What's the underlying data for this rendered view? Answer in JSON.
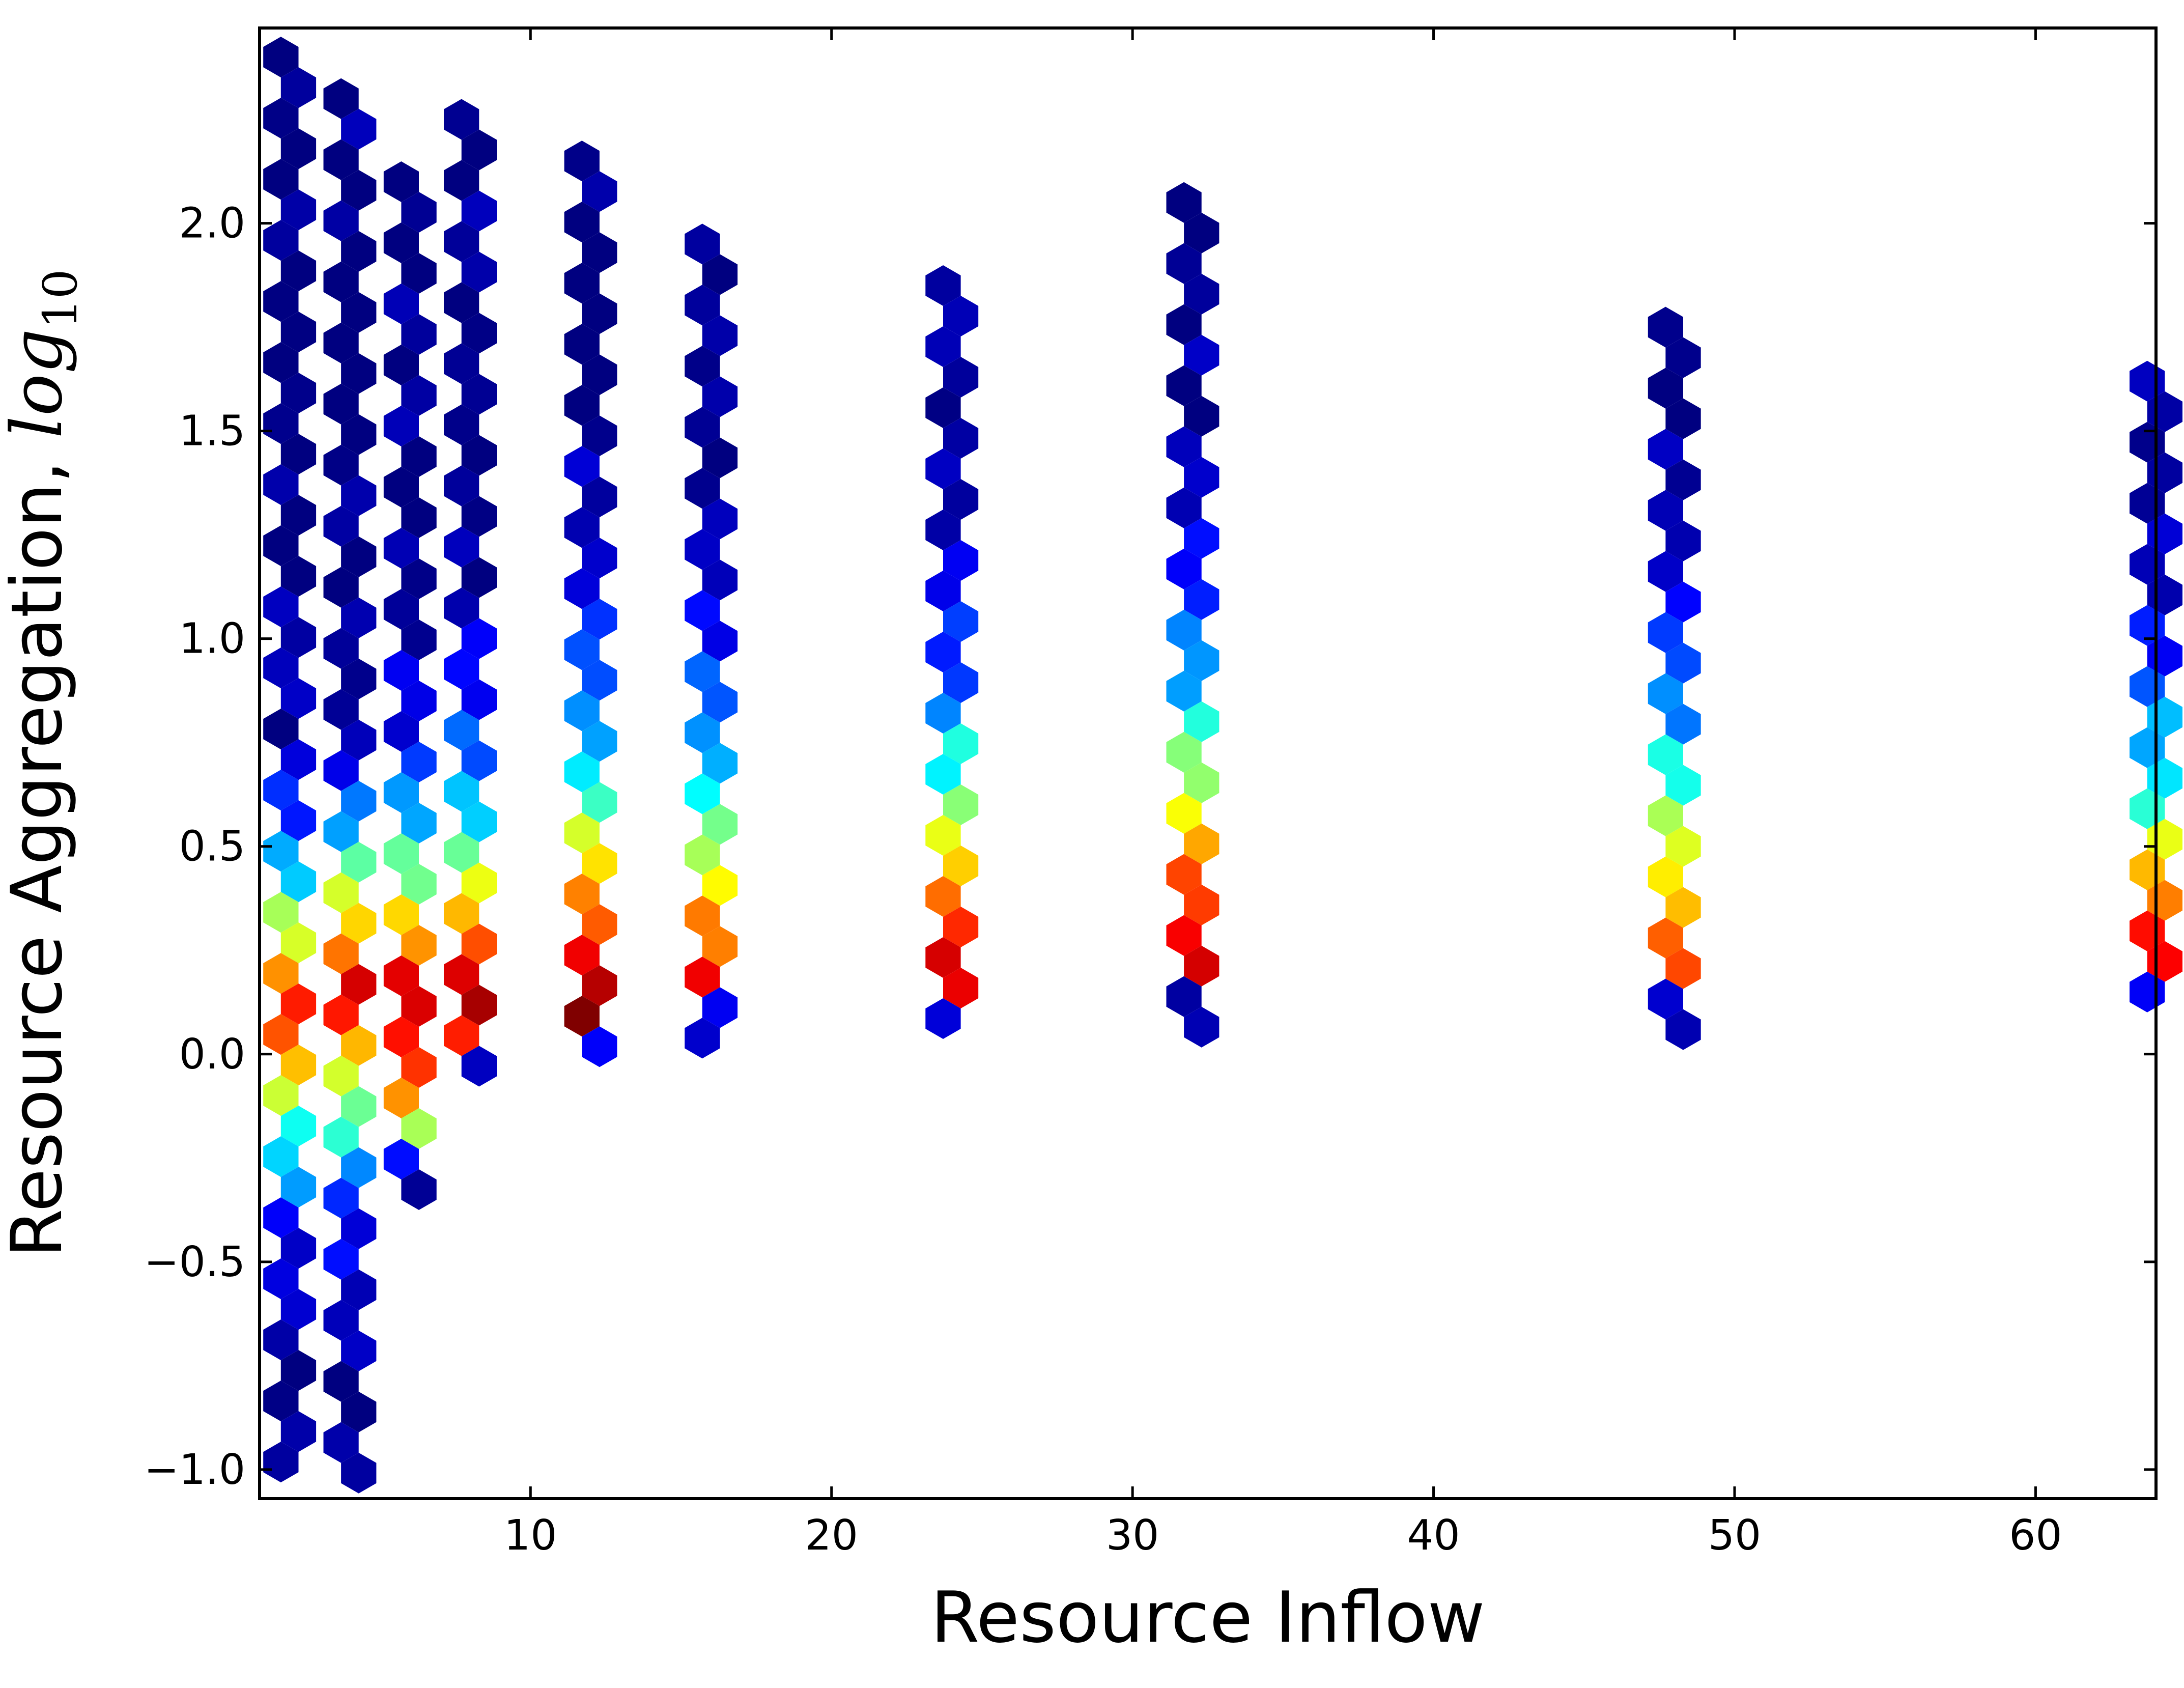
{
  "chart_data": {
    "type": "heatmap",
    "subtype": "hexbin",
    "colormap": "jet",
    "xlabel": "Resource Inflow",
    "ylabel": {
      "text": "Resource Aggregation, ",
      "math_base": "log",
      "math_sub": "10"
    },
    "xlim": [
      1,
      64
    ],
    "ylim": [
      -1.07,
      2.47
    ],
    "x_ticks": [
      10,
      20,
      30,
      40,
      50,
      60
    ],
    "y_ticks": [
      -1.0,
      -0.5,
      0.0,
      0.5,
      1.0,
      1.5,
      2.0
    ],
    "y_tick_labels": [
      "−1.0",
      "−0.5",
      "0.0",
      "0.5",
      "1.0",
      "1.5",
      "2.0"
    ],
    "grid": false,
    "legend": "none",
    "columns": [
      {
        "x": 2,
        "y_min": -1.0,
        "y_max": 2.4,
        "peak_y": 0.1,
        "peak_level": 0.85,
        "spread": 0.35
      },
      {
        "x": 4,
        "y_min": -1.05,
        "y_max": 2.3,
        "peak_y": 0.15,
        "peak_level": 0.9,
        "spread": 0.38
      },
      {
        "x": 6,
        "y_min": -0.35,
        "y_max": 2.1,
        "peak_y": 0.1,
        "peak_level": 0.92,
        "spread": 0.45
      },
      {
        "x": 8,
        "y_min": -0.07,
        "y_max": 2.25,
        "peak_y": 0.1,
        "peak_level": 0.92,
        "spread": 0.5
      },
      {
        "x": 12,
        "y_min": -0.03,
        "y_max": 2.15,
        "peak_y": 0.1,
        "peak_level": 0.98,
        "spread": 0.6
      },
      {
        "x": 16,
        "y_min": 0.03,
        "y_max": 1.95,
        "peak_y": 0.1,
        "peak_level": 0.9,
        "spread": 0.6
      },
      {
        "x": 24,
        "y_min": 0.03,
        "y_max": 1.85,
        "peak_y": 0.1,
        "peak_level": 0.95,
        "spread": 0.65
      },
      {
        "x": 32,
        "y_min": 0.03,
        "y_max": 2.05,
        "peak_y": 0.15,
        "peak_level": 0.97,
        "spread": 0.7
      },
      {
        "x": 48,
        "y_min": 0.03,
        "y_max": 1.75,
        "peak_y": 0.1,
        "peak_level": 0.9,
        "spread": 0.65
      },
      {
        "x": 64,
        "y_min": 0.08,
        "y_max": 1.62,
        "peak_y": 0.1,
        "peak_level": 0.97,
        "spread": 0.6
      }
    ]
  }
}
